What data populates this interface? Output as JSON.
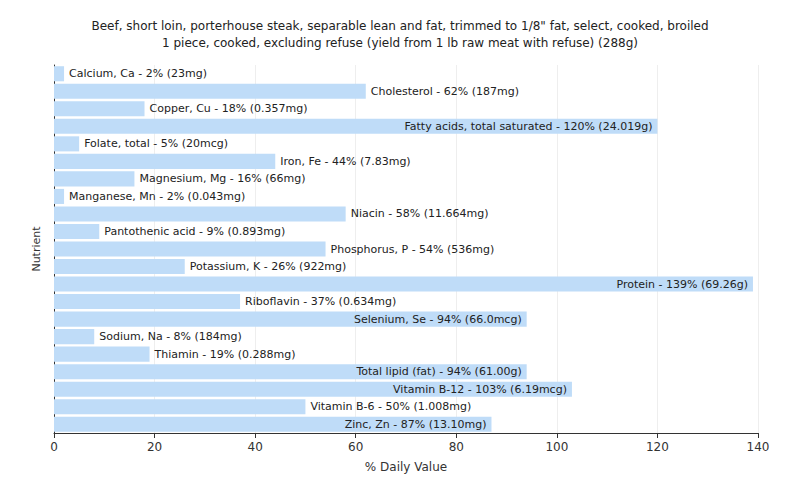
{
  "chart_data": {
    "type": "bar",
    "orientation": "horizontal",
    "title": "Beef, short loin, porterhouse steak, separable lean and fat, trimmed to 1/8\" fat, select, cooked, broiled\n1 piece, cooked, excluding refuse (yield from 1 lb raw meat with refuse) (288g)",
    "x_label": "% Daily Value",
    "y_label": "Nutrient",
    "categories": [
      "Calcium, Ca",
      "Cholesterol",
      "Copper, Cu",
      "Fatty acids, total saturated",
      "Folate, total",
      "Iron, Fe",
      "Magnesium, Mg",
      "Manganese, Mn",
      "Niacin",
      "Pantothenic acid",
      "Phosphorus, P",
      "Potassium, K",
      "Protein",
      "Riboflavin",
      "Selenium, Se",
      "Sodium, Na",
      "Thiamin",
      "Total lipid (fat)",
      "Vitamin B-12",
      "Vitamin B-6",
      "Zinc, Zn"
    ],
    "values": [
      2,
      62,
      18,
      120,
      5,
      44,
      16,
      2,
      58,
      9,
      54,
      26,
      139,
      37,
      94,
      8,
      19,
      94,
      103,
      50,
      87
    ],
    "value_labels": [
      "Calcium, Ca - 2% (23mg)",
      "Cholesterol - 62% (187mg)",
      "Copper, Cu - 18% (0.357mg)",
      "Fatty acids, total saturated - 120% (24.019g)",
      "Folate, total - 5% (20mcg)",
      "Iron, Fe - 44% (7.83mg)",
      "Magnesium, Mg - 16% (66mg)",
      "Manganese, Mn - 2% (0.043mg)",
      "Niacin - 58% (11.664mg)",
      "Pantothenic acid - 9% (0.893mg)",
      "Phosphorus, P - 54% (536mg)",
      "Potassium, K - 26% (922mg)",
      "Protein - 139% (69.26g)",
      "Riboflavin - 37% (0.634mg)",
      "Selenium, Se - 94% (66.0mcg)",
      "Sodium, Na - 8% (184mg)",
      "Thiamin - 19% (0.288mg)",
      "Total lipid (fat) - 94% (61.00g)",
      "Vitamin B-12 - 103% (6.19mcg)",
      "Vitamin B-6 - 50% (1.008mg)",
      "Zinc, Zn - 87% (13.10mg)"
    ],
    "data_labels": true,
    "tick_labels": "x",
    "color": "#bfdcf8",
    "xlim": [
      0,
      140
    ],
    "xticks": [
      0,
      20,
      40,
      60,
      80,
      100,
      120,
      140
    ],
    "grid": true
  }
}
